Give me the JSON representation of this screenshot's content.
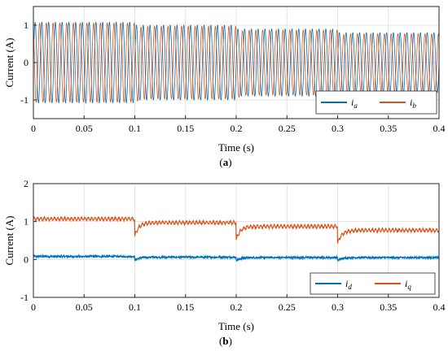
{
  "colors": {
    "blue": "#0072BD",
    "orange": "#D95319",
    "grid": "#e3e3e3",
    "axis": "#262626"
  },
  "x_ticks": [
    "0",
    "0.05",
    "0.1",
    "0.15",
    "0.2",
    "0.25",
    "0.3",
    "0.35",
    "0.4"
  ],
  "chart_data": [
    {
      "type": "line",
      "panel_caption": "(a)",
      "caption_open": "(",
      "caption_letter": "a",
      "caption_close": ")",
      "xlabel": "Time (s)",
      "ylabel": "Current (A)",
      "xlim": [
        0,
        0.4
      ],
      "ylim": [
        -1.5,
        1.5
      ],
      "y_ticks": [
        "-1",
        "0",
        "1"
      ],
      "grid": true,
      "legend_placement": "bottom-right",
      "legend": [
        {
          "base": "i",
          "sub": "a",
          "color": "#0072BD"
        },
        {
          "base": "i",
          "sub": "b",
          "color": "#D95319"
        }
      ],
      "series": [
        {
          "name": "ia",
          "color": "#0072BD",
          "kind": "sinusoid",
          "segments": [
            {
              "t0": 0.0,
              "t1": 0.1,
              "amplitude": 1.08
            },
            {
              "t0": 0.1,
              "t1": 0.2,
              "amplitude": 1.0
            },
            {
              "t0": 0.2,
              "t1": 0.3,
              "amplitude": 0.9
            },
            {
              "t0": 0.3,
              "t1": 0.4,
              "amplitude": 0.8
            }
          ]
        },
        {
          "name": "ib",
          "color": "#D95319",
          "kind": "sinusoid",
          "segments": [
            {
              "t0": 0.0,
              "t1": 0.1,
              "amplitude": 1.06
            },
            {
              "t0": 0.1,
              "t1": 0.2,
              "amplitude": 0.97
            },
            {
              "t0": 0.2,
              "t1": 0.3,
              "amplitude": 0.87
            },
            {
              "t0": 0.3,
              "t1": 0.4,
              "amplitude": 0.77
            }
          ]
        }
      ]
    },
    {
      "type": "line",
      "panel_caption": "(b)",
      "caption_open": "(",
      "caption_letter": "b",
      "caption_close": ")",
      "xlabel": "Time (s)",
      "ylabel": "Current (A)",
      "xlim": [
        0,
        0.4
      ],
      "ylim": [
        -1,
        2
      ],
      "y_ticks": [
        "-1",
        "0",
        "1",
        "2"
      ],
      "grid": true,
      "legend_placement": "bottom-right",
      "legend": [
        {
          "base": "i",
          "sub": "d",
          "color": "#0072BD"
        },
        {
          "base": "i",
          "sub": "q",
          "color": "#D95319"
        }
      ],
      "series": [
        {
          "name": "id",
          "color": "#0072BD",
          "kind": "step",
          "segments": [
            {
              "t0": 0.0,
              "t1": 0.1,
              "value": 0.08
            },
            {
              "t0": 0.1,
              "t1": 0.2,
              "value": 0.06
            },
            {
              "t0": 0.2,
              "t1": 0.3,
              "value": 0.05
            },
            {
              "t0": 0.3,
              "t1": 0.4,
              "value": 0.05
            }
          ]
        },
        {
          "name": "iq",
          "color": "#D95319",
          "kind": "step",
          "segments": [
            {
              "t0": 0.0,
              "t1": 0.1,
              "value": 1.07
            },
            {
              "t0": 0.1,
              "t1": 0.2,
              "value": 0.97
            },
            {
              "t0": 0.2,
              "t1": 0.3,
              "value": 0.87
            },
            {
              "t0": 0.3,
              "t1": 0.4,
              "value": 0.77
            }
          ]
        }
      ]
    }
  ]
}
